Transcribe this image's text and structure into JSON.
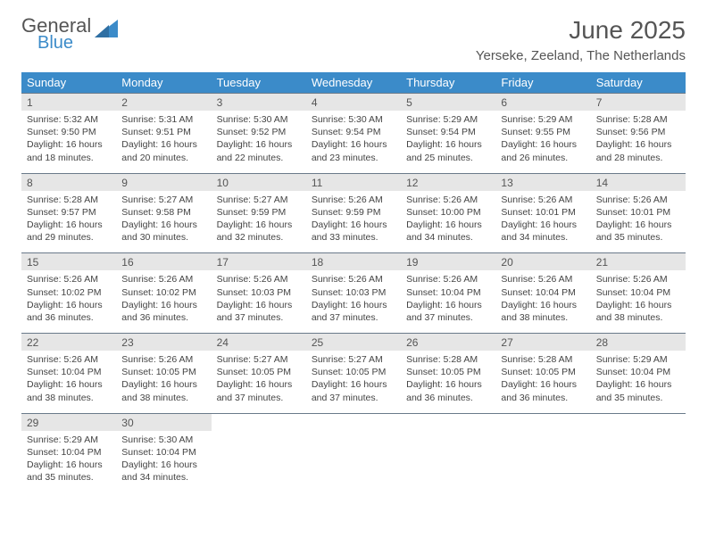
{
  "brand": {
    "general": "General",
    "blue": "Blue",
    "tri_color": "#3b8bc9"
  },
  "title": {
    "month": "June 2025",
    "location": "Yerseke, Zeeland, The Netherlands"
  },
  "colors": {
    "header_bg": "#3b8bc9",
    "daynum_bg": "#e6e6e6",
    "rule": "#6a7a8a",
    "text": "#444",
    "title_text": "#555"
  },
  "typography": {
    "month_fontsize": 28,
    "location_fontsize": 15,
    "dow_fontsize": 13,
    "cell_fontsize": 10.5
  },
  "dow": [
    "Sunday",
    "Monday",
    "Tuesday",
    "Wednesday",
    "Thursday",
    "Friday",
    "Saturday"
  ],
  "weeks": [
    [
      {
        "n": "1",
        "sr": "Sunrise: 5:32 AM",
        "ss": "Sunset: 9:50 PM",
        "d1": "Daylight: 16 hours",
        "d2": "and 18 minutes."
      },
      {
        "n": "2",
        "sr": "Sunrise: 5:31 AM",
        "ss": "Sunset: 9:51 PM",
        "d1": "Daylight: 16 hours",
        "d2": "and 20 minutes."
      },
      {
        "n": "3",
        "sr": "Sunrise: 5:30 AM",
        "ss": "Sunset: 9:52 PM",
        "d1": "Daylight: 16 hours",
        "d2": "and 22 minutes."
      },
      {
        "n": "4",
        "sr": "Sunrise: 5:30 AM",
        "ss": "Sunset: 9:54 PM",
        "d1": "Daylight: 16 hours",
        "d2": "and 23 minutes."
      },
      {
        "n": "5",
        "sr": "Sunrise: 5:29 AM",
        "ss": "Sunset: 9:54 PM",
        "d1": "Daylight: 16 hours",
        "d2": "and 25 minutes."
      },
      {
        "n": "6",
        "sr": "Sunrise: 5:29 AM",
        "ss": "Sunset: 9:55 PM",
        "d1": "Daylight: 16 hours",
        "d2": "and 26 minutes."
      },
      {
        "n": "7",
        "sr": "Sunrise: 5:28 AM",
        "ss": "Sunset: 9:56 PM",
        "d1": "Daylight: 16 hours",
        "d2": "and 28 minutes."
      }
    ],
    [
      {
        "n": "8",
        "sr": "Sunrise: 5:28 AM",
        "ss": "Sunset: 9:57 PM",
        "d1": "Daylight: 16 hours",
        "d2": "and 29 minutes."
      },
      {
        "n": "9",
        "sr": "Sunrise: 5:27 AM",
        "ss": "Sunset: 9:58 PM",
        "d1": "Daylight: 16 hours",
        "d2": "and 30 minutes."
      },
      {
        "n": "10",
        "sr": "Sunrise: 5:27 AM",
        "ss": "Sunset: 9:59 PM",
        "d1": "Daylight: 16 hours",
        "d2": "and 32 minutes."
      },
      {
        "n": "11",
        "sr": "Sunrise: 5:26 AM",
        "ss": "Sunset: 9:59 PM",
        "d1": "Daylight: 16 hours",
        "d2": "and 33 minutes."
      },
      {
        "n": "12",
        "sr": "Sunrise: 5:26 AM",
        "ss": "Sunset: 10:00 PM",
        "d1": "Daylight: 16 hours",
        "d2": "and 34 minutes."
      },
      {
        "n": "13",
        "sr": "Sunrise: 5:26 AM",
        "ss": "Sunset: 10:01 PM",
        "d1": "Daylight: 16 hours",
        "d2": "and 34 minutes."
      },
      {
        "n": "14",
        "sr": "Sunrise: 5:26 AM",
        "ss": "Sunset: 10:01 PM",
        "d1": "Daylight: 16 hours",
        "d2": "and 35 minutes."
      }
    ],
    [
      {
        "n": "15",
        "sr": "Sunrise: 5:26 AM",
        "ss": "Sunset: 10:02 PM",
        "d1": "Daylight: 16 hours",
        "d2": "and 36 minutes."
      },
      {
        "n": "16",
        "sr": "Sunrise: 5:26 AM",
        "ss": "Sunset: 10:02 PM",
        "d1": "Daylight: 16 hours",
        "d2": "and 36 minutes."
      },
      {
        "n": "17",
        "sr": "Sunrise: 5:26 AM",
        "ss": "Sunset: 10:03 PM",
        "d1": "Daylight: 16 hours",
        "d2": "and 37 minutes."
      },
      {
        "n": "18",
        "sr": "Sunrise: 5:26 AM",
        "ss": "Sunset: 10:03 PM",
        "d1": "Daylight: 16 hours",
        "d2": "and 37 minutes."
      },
      {
        "n": "19",
        "sr": "Sunrise: 5:26 AM",
        "ss": "Sunset: 10:04 PM",
        "d1": "Daylight: 16 hours",
        "d2": "and 37 minutes."
      },
      {
        "n": "20",
        "sr": "Sunrise: 5:26 AM",
        "ss": "Sunset: 10:04 PM",
        "d1": "Daylight: 16 hours",
        "d2": "and 38 minutes."
      },
      {
        "n": "21",
        "sr": "Sunrise: 5:26 AM",
        "ss": "Sunset: 10:04 PM",
        "d1": "Daylight: 16 hours",
        "d2": "and 38 minutes."
      }
    ],
    [
      {
        "n": "22",
        "sr": "Sunrise: 5:26 AM",
        "ss": "Sunset: 10:04 PM",
        "d1": "Daylight: 16 hours",
        "d2": "and 38 minutes."
      },
      {
        "n": "23",
        "sr": "Sunrise: 5:26 AM",
        "ss": "Sunset: 10:05 PM",
        "d1": "Daylight: 16 hours",
        "d2": "and 38 minutes."
      },
      {
        "n": "24",
        "sr": "Sunrise: 5:27 AM",
        "ss": "Sunset: 10:05 PM",
        "d1": "Daylight: 16 hours",
        "d2": "and 37 minutes."
      },
      {
        "n": "25",
        "sr": "Sunrise: 5:27 AM",
        "ss": "Sunset: 10:05 PM",
        "d1": "Daylight: 16 hours",
        "d2": "and 37 minutes."
      },
      {
        "n": "26",
        "sr": "Sunrise: 5:28 AM",
        "ss": "Sunset: 10:05 PM",
        "d1": "Daylight: 16 hours",
        "d2": "and 36 minutes."
      },
      {
        "n": "27",
        "sr": "Sunrise: 5:28 AM",
        "ss": "Sunset: 10:05 PM",
        "d1": "Daylight: 16 hours",
        "d2": "and 36 minutes."
      },
      {
        "n": "28",
        "sr": "Sunrise: 5:29 AM",
        "ss": "Sunset: 10:04 PM",
        "d1": "Daylight: 16 hours",
        "d2": "and 35 minutes."
      }
    ],
    [
      {
        "n": "29",
        "sr": "Sunrise: 5:29 AM",
        "ss": "Sunset: 10:04 PM",
        "d1": "Daylight: 16 hours",
        "d2": "and 35 minutes."
      },
      {
        "n": "30",
        "sr": "Sunrise: 5:30 AM",
        "ss": "Sunset: 10:04 PM",
        "d1": "Daylight: 16 hours",
        "d2": "and 34 minutes."
      },
      null,
      null,
      null,
      null,
      null
    ]
  ]
}
